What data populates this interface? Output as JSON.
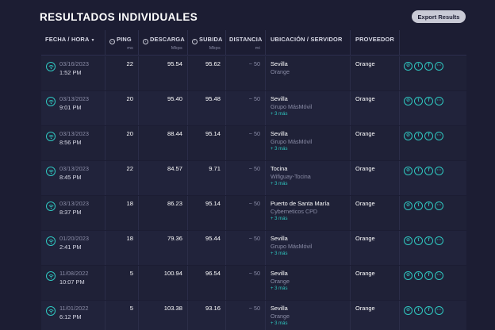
{
  "page": {
    "title": "RESULTADOS INDIVIDUALES",
    "export_label": "Export Results"
  },
  "columns": {
    "date": "FECHA / HORA",
    "ping": "PING",
    "ping_unit": "ms",
    "download": "DESCARGA",
    "download_unit": "Mbps",
    "upload": "SUBIDA",
    "upload_unit": "Mbps",
    "distance": "DISTANCIA",
    "distance_unit": "mi",
    "location": "UBICACIÓN / SERVIDOR",
    "provider": "PROVEEDOR"
  },
  "icons": {
    "sort": "chevron-down-icon",
    "row_status": "wifi-icon",
    "actions": [
      "link-icon",
      "twitter-icon",
      "facebook-icon",
      "more-icon"
    ]
  },
  "colors": {
    "background": "#1c1d33",
    "accent": "#2fc7c0"
  },
  "rows": [
    {
      "date": "03/16/2023",
      "time": "1:52 PM",
      "ping": "22",
      "download": "95.54",
      "upload": "95.62",
      "distance": "~ 50",
      "city": "Sevilla",
      "isp": "Orange",
      "more": "",
      "provider": "Orange"
    },
    {
      "date": "03/13/2023",
      "time": "9:01 PM",
      "ping": "20",
      "download": "95.40",
      "upload": "95.48",
      "distance": "~ 50",
      "city": "Sevilla",
      "isp": "Grupo MásMóvil",
      "more": "+ 3 más",
      "provider": "Orange"
    },
    {
      "date": "03/13/2023",
      "time": "8:56 PM",
      "ping": "20",
      "download": "88.44",
      "upload": "95.14",
      "distance": "~ 50",
      "city": "Sevilla",
      "isp": "Grupo MásMóvil",
      "more": "+ 3 más",
      "provider": "Orange"
    },
    {
      "date": "03/13/2023",
      "time": "8:45 PM",
      "ping": "22",
      "download": "84.57",
      "upload": "9.71",
      "distance": "~ 50",
      "city": "Tocina",
      "isp": "Wifiguay-Tocina",
      "more": "+ 3 más",
      "provider": "Orange"
    },
    {
      "date": "03/13/2023",
      "time": "8:37 PM",
      "ping": "18",
      "download": "86.23",
      "upload": "95.14",
      "distance": "~ 50",
      "city": "Puerto de Santa María",
      "isp": "Cyberneticos CPD",
      "more": "+ 3 más",
      "provider": "Orange"
    },
    {
      "date": "01/20/2023",
      "time": "2:41 PM",
      "ping": "18",
      "download": "79.36",
      "upload": "95.44",
      "distance": "~ 50",
      "city": "Sevilla",
      "isp": "Grupo MásMóvil",
      "more": "+ 3 más",
      "provider": "Orange"
    },
    {
      "date": "11/08/2022",
      "time": "10:07 PM",
      "ping": "5",
      "download": "100.94",
      "upload": "96.54",
      "distance": "~ 50",
      "city": "Sevilla",
      "isp": "Orange",
      "more": "+ 3 más",
      "provider": "Orange"
    },
    {
      "date": "11/01/2022",
      "time": "6:12 PM",
      "ping": "5",
      "download": "103.38",
      "upload": "93.16",
      "distance": "~ 50",
      "city": "Sevilla",
      "isp": "Orange",
      "more": "+ 3 más",
      "provider": "Orange"
    }
  ]
}
